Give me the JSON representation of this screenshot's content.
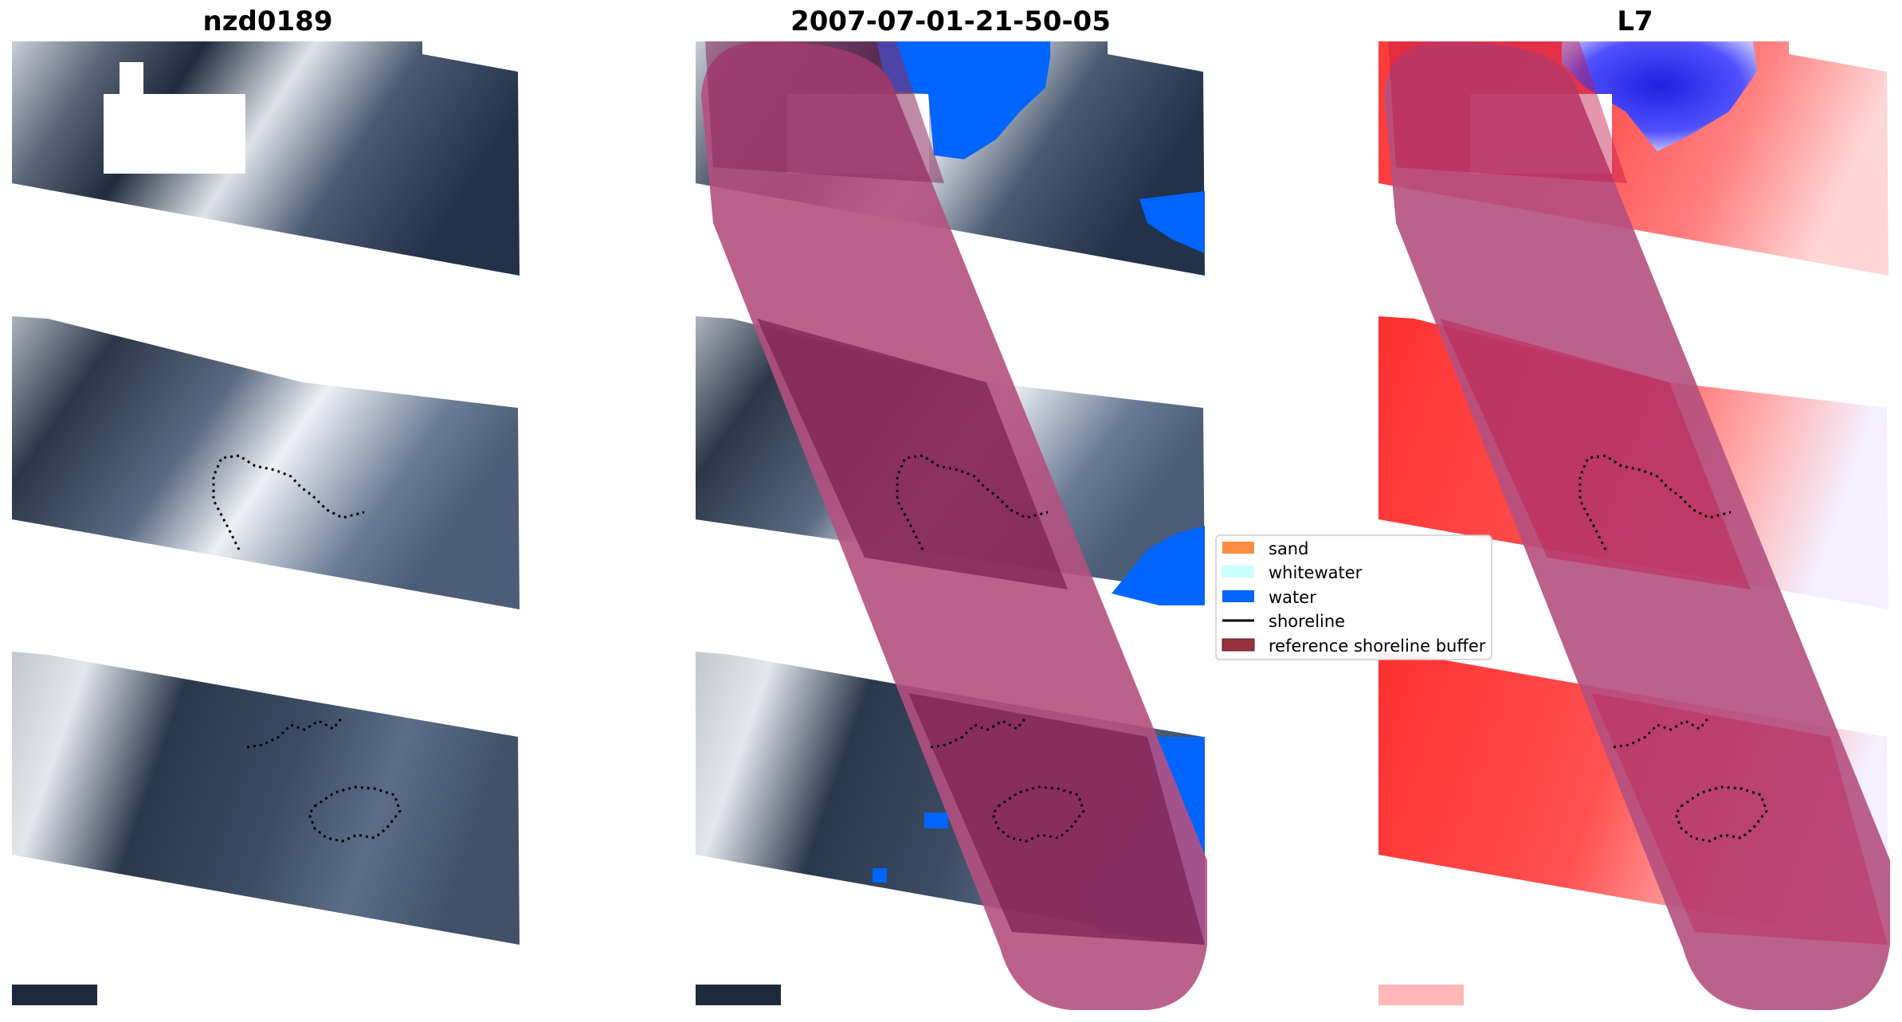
{
  "figure": {
    "panels": [
      {
        "title": "nzd0189",
        "kind": "rgb-image"
      },
      {
        "title": "2007-07-01-21-50-05",
        "kind": "classified-overlay"
      },
      {
        "title": "L7",
        "kind": "index-image"
      }
    ],
    "legend": {
      "entries": [
        {
          "label": "sand",
          "color": "#ff8c40",
          "marker": "patch"
        },
        {
          "label": "whitewater",
          "color": "#c8ffff",
          "marker": "patch"
        },
        {
          "label": "water",
          "color": "#0064ff",
          "marker": "patch"
        },
        {
          "label": "shoreline",
          "color": "#000000",
          "marker": "line"
        },
        {
          "label": "reference shoreline buffer",
          "color": "#96323c",
          "marker": "patch"
        }
      ]
    },
    "colors": {
      "buffer_overlay": "#b4507f",
      "water": "#0064ff",
      "index_positive": "#ff2020",
      "index_negative": "#1a1aff",
      "rgb_dark": "#1c2a3c",
      "rgb_cloud": "#d9dde2"
    }
  }
}
